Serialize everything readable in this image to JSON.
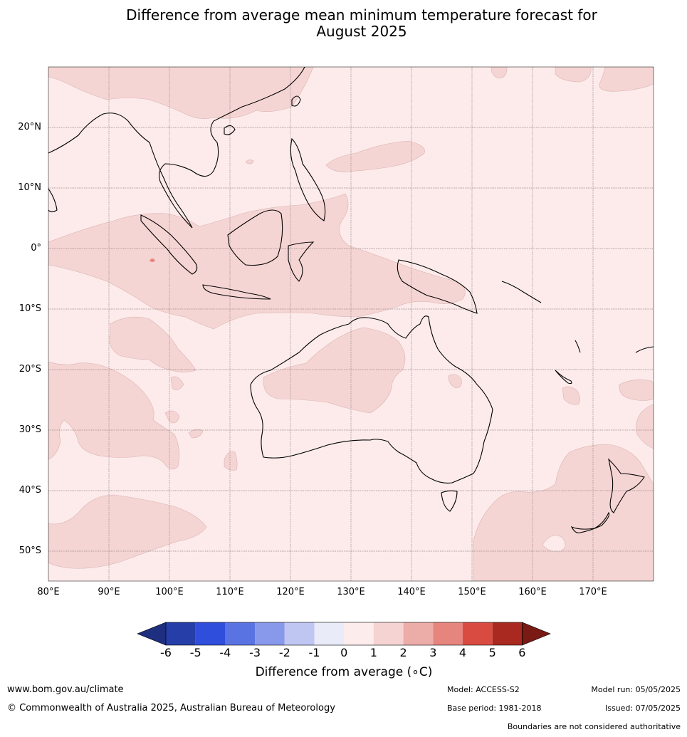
{
  "title": {
    "line1": "Difference from average mean minimum temperature forecast for",
    "line2": "August 2025"
  },
  "map": {
    "lat_labels": [
      "20°N",
      "10°N",
      "0°",
      "10°S",
      "20°S",
      "30°S",
      "40°S",
      "50°S"
    ],
    "lon_labels": [
      "80°E",
      "90°E",
      "100°E",
      "110°E",
      "120°E",
      "130°E",
      "140°E",
      "150°E",
      "160°E",
      "170°E"
    ],
    "dominant_anomaly_class": "0 to 1",
    "secondary_anomaly_class": "1 to 2"
  },
  "colorbar": {
    "colors": [
      "#1f2f80",
      "#263ea8",
      "#2f4edc",
      "#5a73e3",
      "#8898ea",
      "#c0c6f2",
      "#e9ebf9",
      "#fcecec",
      "#f5d3d2",
      "#ecaca8",
      "#e6857e",
      "#d94b41",
      "#a9281f",
      "#7a1a15"
    ],
    "ticks": [
      "-6",
      "-5",
      "-4",
      "-3",
      "-2",
      "-1",
      "0",
      "1",
      "2",
      "3",
      "4",
      "5",
      "6"
    ],
    "label": "Difference from average (∘C)"
  },
  "footer": {
    "website": "www.bom.gov.au/climate",
    "copyright": "© Commonwealth of Australia 2025, Australian Bureau of Meteorology",
    "model": "Model: ACCESS-S2",
    "base_period": "Base period: 1981-2018",
    "model_run": "Model run: 05/05/2025",
    "issued": "Issued: 07/05/2025",
    "disclaimer": "Boundaries are not considered authoritative"
  }
}
